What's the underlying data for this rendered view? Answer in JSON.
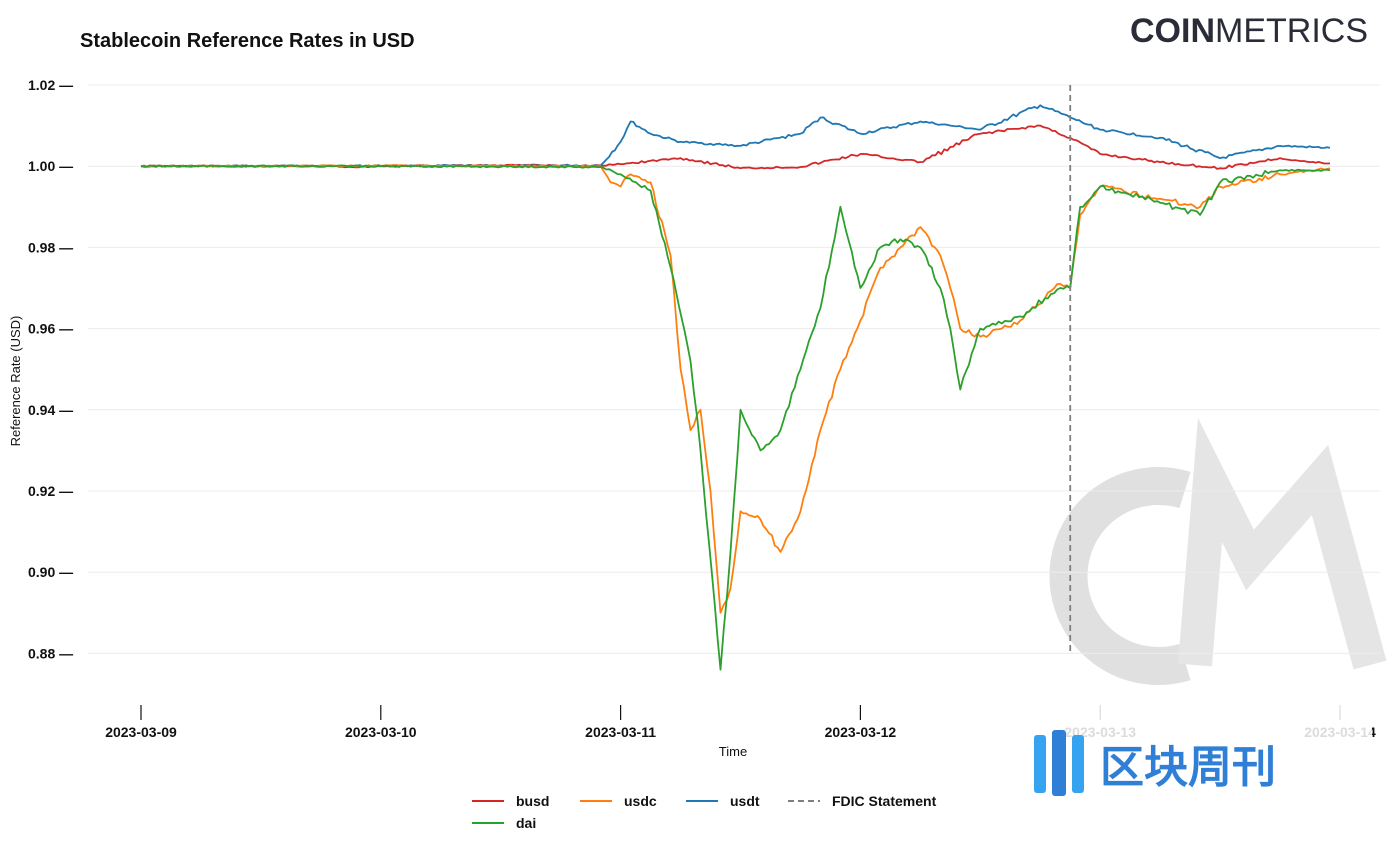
{
  "brand": {
    "logo_bold": "COIN",
    "logo_light": "METRICS"
  },
  "watermark": {
    "text": "区块周刊"
  },
  "colors": {
    "busd": "#d62728",
    "usdc": "#ff7f0e",
    "usdt": "#1f77b4",
    "dai": "#2ca02c",
    "fdic": "#7f7f7f"
  },
  "chart_data": {
    "type": "line",
    "title": "Stablecoin Reference Rates in USD",
    "xlabel": "Time",
    "ylabel": "Reference Rate (USD)",
    "x_ticks": [
      "2023-03-09",
      "2023-03-10",
      "2023-03-11",
      "2023-03-12",
      "2023-03-13",
      "2023-03-14"
    ],
    "y_ticks": [
      "0.88",
      "0.90",
      "0.92",
      "0.94",
      "0.96",
      "0.98",
      "1.00",
      "1.02"
    ],
    "y_tick_marks": [
      "—",
      "—",
      "—",
      "—",
      "—",
      "—",
      "—",
      "—"
    ],
    "xlim": [
      "2023-03-09T00:00",
      "2023-03-14T00:00"
    ],
    "ylim": [
      0.872,
      1.025
    ],
    "grid": "horizontal",
    "legend_position": "bottom-center",
    "annotations": [
      {
        "type": "vertical-dashed-line",
        "x": "2023-03-12T21:00",
        "label": "FDIC Statement"
      }
    ],
    "series": [
      {
        "name": "busd",
        "color": "#d62728",
        "points": [
          [
            "2023-03-09T00:00",
            1.0
          ],
          [
            "2023-03-09T12:00",
            1.0
          ],
          [
            "2023-03-09T19:00",
            1.0
          ],
          [
            "2023-03-09T21:00",
            0.9998
          ],
          [
            "2023-03-10T00:00",
            1.0
          ],
          [
            "2023-03-10T12:00",
            1.0002
          ],
          [
            "2023-03-10T22:00",
            1.0001
          ],
          [
            "2023-03-11T00:00",
            1.0005
          ],
          [
            "2023-03-11T06:00",
            1.002
          ],
          [
            "2023-03-11T12:00",
            0.9995
          ],
          [
            "2023-03-11T18:00",
            0.9998
          ],
          [
            "2023-03-12T00:00",
            1.003
          ],
          [
            "2023-03-12T06:00",
            1.001
          ],
          [
            "2023-03-12T12:00",
            1.008
          ],
          [
            "2023-03-12T18:00",
            1.01
          ],
          [
            "2023-03-12T21:00",
            1.007
          ],
          [
            "2023-03-13T00:00",
            1.003
          ],
          [
            "2023-03-13T06:00",
            1.001
          ],
          [
            "2023-03-13T12:00",
            0.9995
          ],
          [
            "2023-03-13T18:00",
            1.002
          ],
          [
            "2023-03-13T21:00",
            1.001
          ],
          [
            "2023-03-13T23:00",
            1.0007
          ]
        ]
      },
      {
        "name": "usdc",
        "color": "#ff7f0e",
        "points": [
          [
            "2023-03-09T00:00",
            1.0
          ],
          [
            "2023-03-10T00:00",
            1.0001
          ],
          [
            "2023-03-10T22:00",
            1.0
          ],
          [
            "2023-03-10T23:00",
            0.996
          ],
          [
            "2023-03-11T00:00",
            0.995
          ],
          [
            "2023-03-11T01:00",
            0.998
          ],
          [
            "2023-03-11T03:00",
            0.996
          ],
          [
            "2023-03-11T05:00",
            0.978
          ],
          [
            "2023-03-11T06:00",
            0.95
          ],
          [
            "2023-03-11T07:00",
            0.935
          ],
          [
            "2023-03-11T08:00",
            0.94
          ],
          [
            "2023-03-11T09:00",
            0.92
          ],
          [
            "2023-03-11T10:00",
            0.89
          ],
          [
            "2023-03-11T11:00",
            0.896
          ],
          [
            "2023-03-11T12:00",
            0.915
          ],
          [
            "2023-03-11T14:00",
            0.913
          ],
          [
            "2023-03-11T16:00",
            0.905
          ],
          [
            "2023-03-11T18:00",
            0.915
          ],
          [
            "2023-03-11T20:00",
            0.935
          ],
          [
            "2023-03-11T22:00",
            0.95
          ],
          [
            "2023-03-12T00:00",
            0.962
          ],
          [
            "2023-03-12T02:00",
            0.975
          ],
          [
            "2023-03-12T04:00",
            0.98
          ],
          [
            "2023-03-12T06:00",
            0.985
          ],
          [
            "2023-03-12T08:00",
            0.978
          ],
          [
            "2023-03-12T09:00",
            0.97
          ],
          [
            "2023-03-12T10:00",
            0.96
          ],
          [
            "2023-03-12T12:00",
            0.958
          ],
          [
            "2023-03-12T16:00",
            0.962
          ],
          [
            "2023-03-12T20:00",
            0.971
          ],
          [
            "2023-03-12T21:00",
            0.97
          ],
          [
            "2023-03-12T22:00",
            0.988
          ],
          [
            "2023-03-13T00:00",
            0.995
          ],
          [
            "2023-03-13T06:00",
            0.992
          ],
          [
            "2023-03-13T10:00",
            0.99
          ],
          [
            "2023-03-13T12:00",
            0.995
          ],
          [
            "2023-03-13T18:00",
            0.998
          ],
          [
            "2023-03-13T23:00",
            0.9995
          ]
        ]
      },
      {
        "name": "usdt",
        "color": "#1f77b4",
        "points": [
          [
            "2023-03-09T00:00",
            1.0
          ],
          [
            "2023-03-10T00:00",
            1.0001
          ],
          [
            "2023-03-10T22:00",
            1.0002
          ],
          [
            "2023-03-11T00:00",
            1.006
          ],
          [
            "2023-03-11T01:00",
            1.011
          ],
          [
            "2023-03-11T03:00",
            1.008
          ],
          [
            "2023-03-11T06:00",
            1.006
          ],
          [
            "2023-03-11T12:00",
            1.005
          ],
          [
            "2023-03-11T18:00",
            1.008
          ],
          [
            "2023-03-11T20:00",
            1.012
          ],
          [
            "2023-03-12T00:00",
            1.008
          ],
          [
            "2023-03-12T06:00",
            1.011
          ],
          [
            "2023-03-12T09:00",
            1.01
          ],
          [
            "2023-03-12T12:00",
            1.009
          ],
          [
            "2023-03-12T18:00",
            1.015
          ],
          [
            "2023-03-12T21:00",
            1.012
          ],
          [
            "2023-03-13T00:00",
            1.009
          ],
          [
            "2023-03-13T06:00",
            1.007
          ],
          [
            "2023-03-13T12:00",
            1.002
          ],
          [
            "2023-03-13T18:00",
            1.005
          ],
          [
            "2023-03-13T23:00",
            1.0045
          ]
        ]
      },
      {
        "name": "dai",
        "color": "#2ca02c",
        "points": [
          [
            "2023-03-09T00:00",
            1.0
          ],
          [
            "2023-03-10T00:00",
            1.0
          ],
          [
            "2023-03-10T22:00",
            0.9998
          ],
          [
            "2023-03-11T00:00",
            0.998
          ],
          [
            "2023-03-11T03:00",
            0.994
          ],
          [
            "2023-03-11T05:00",
            0.975
          ],
          [
            "2023-03-11T07:00",
            0.952
          ],
          [
            "2023-03-11T08:00",
            0.93
          ],
          [
            "2023-03-11T10:00",
            0.876
          ],
          [
            "2023-03-11T11:00",
            0.905
          ],
          [
            "2023-03-11T12:00",
            0.94
          ],
          [
            "2023-03-11T14:00",
            0.93
          ],
          [
            "2023-03-11T16:00",
            0.935
          ],
          [
            "2023-03-11T18:00",
            0.95
          ],
          [
            "2023-03-11T20:00",
            0.965
          ],
          [
            "2023-03-11T22:00",
            0.99
          ],
          [
            "2023-03-12T00:00",
            0.97
          ],
          [
            "2023-03-12T02:00",
            0.98
          ],
          [
            "2023-03-12T04:00",
            0.982
          ],
          [
            "2023-03-12T06:00",
            0.98
          ],
          [
            "2023-03-12T08:00",
            0.97
          ],
          [
            "2023-03-12T09:00",
            0.96
          ],
          [
            "2023-03-12T10:00",
            0.945
          ],
          [
            "2023-03-12T12:00",
            0.96
          ],
          [
            "2023-03-12T16:00",
            0.963
          ],
          [
            "2023-03-12T20:00",
            0.97
          ],
          [
            "2023-03-12T21:00",
            0.97
          ],
          [
            "2023-03-12T22:00",
            0.99
          ],
          [
            "2023-03-13T00:00",
            0.995
          ],
          [
            "2023-03-13T06:00",
            0.991
          ],
          [
            "2023-03-13T10:00",
            0.988
          ],
          [
            "2023-03-13T12:00",
            0.996
          ],
          [
            "2023-03-13T18:00",
            0.999
          ],
          [
            "2023-03-13T23:00",
            0.999
          ]
        ]
      }
    ],
    "legend": [
      {
        "key": "busd",
        "label": "busd",
        "style": "solid"
      },
      {
        "key": "usdc",
        "label": "usdc",
        "style": "solid"
      },
      {
        "key": "usdt",
        "label": "usdt",
        "style": "solid"
      },
      {
        "key": "fdic",
        "label": "FDIC Statement",
        "style": "dashed"
      },
      {
        "key": "dai",
        "label": "dai",
        "style": "solid"
      }
    ]
  }
}
